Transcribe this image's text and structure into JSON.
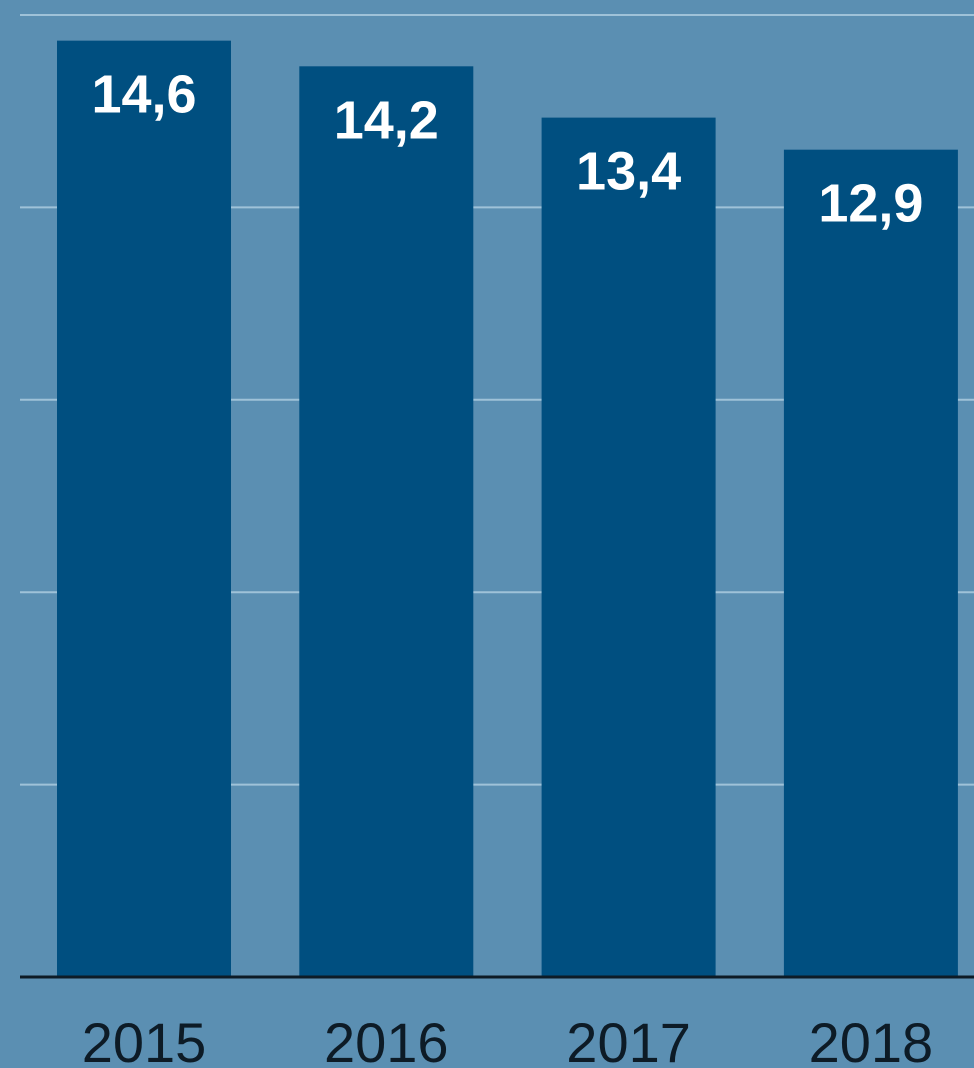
{
  "chart_data": {
    "type": "bar",
    "categories": [
      "2015",
      "2016",
      "2017",
      "2018"
    ],
    "values": [
      14.6,
      14.2,
      13.4,
      12.9
    ],
    "value_labels": [
      "14,6",
      "14,2",
      "13,4",
      "12,9"
    ],
    "ylim": [
      0,
      15
    ],
    "grid": true,
    "legend": "none"
  },
  "colors": {
    "background": "#5b8fb2",
    "bar": "#004f80",
    "bar_label": "#ffffff",
    "gridline": "#9fc2d8",
    "axis": "#0d1b26",
    "tick_label": "#0d1b26"
  }
}
